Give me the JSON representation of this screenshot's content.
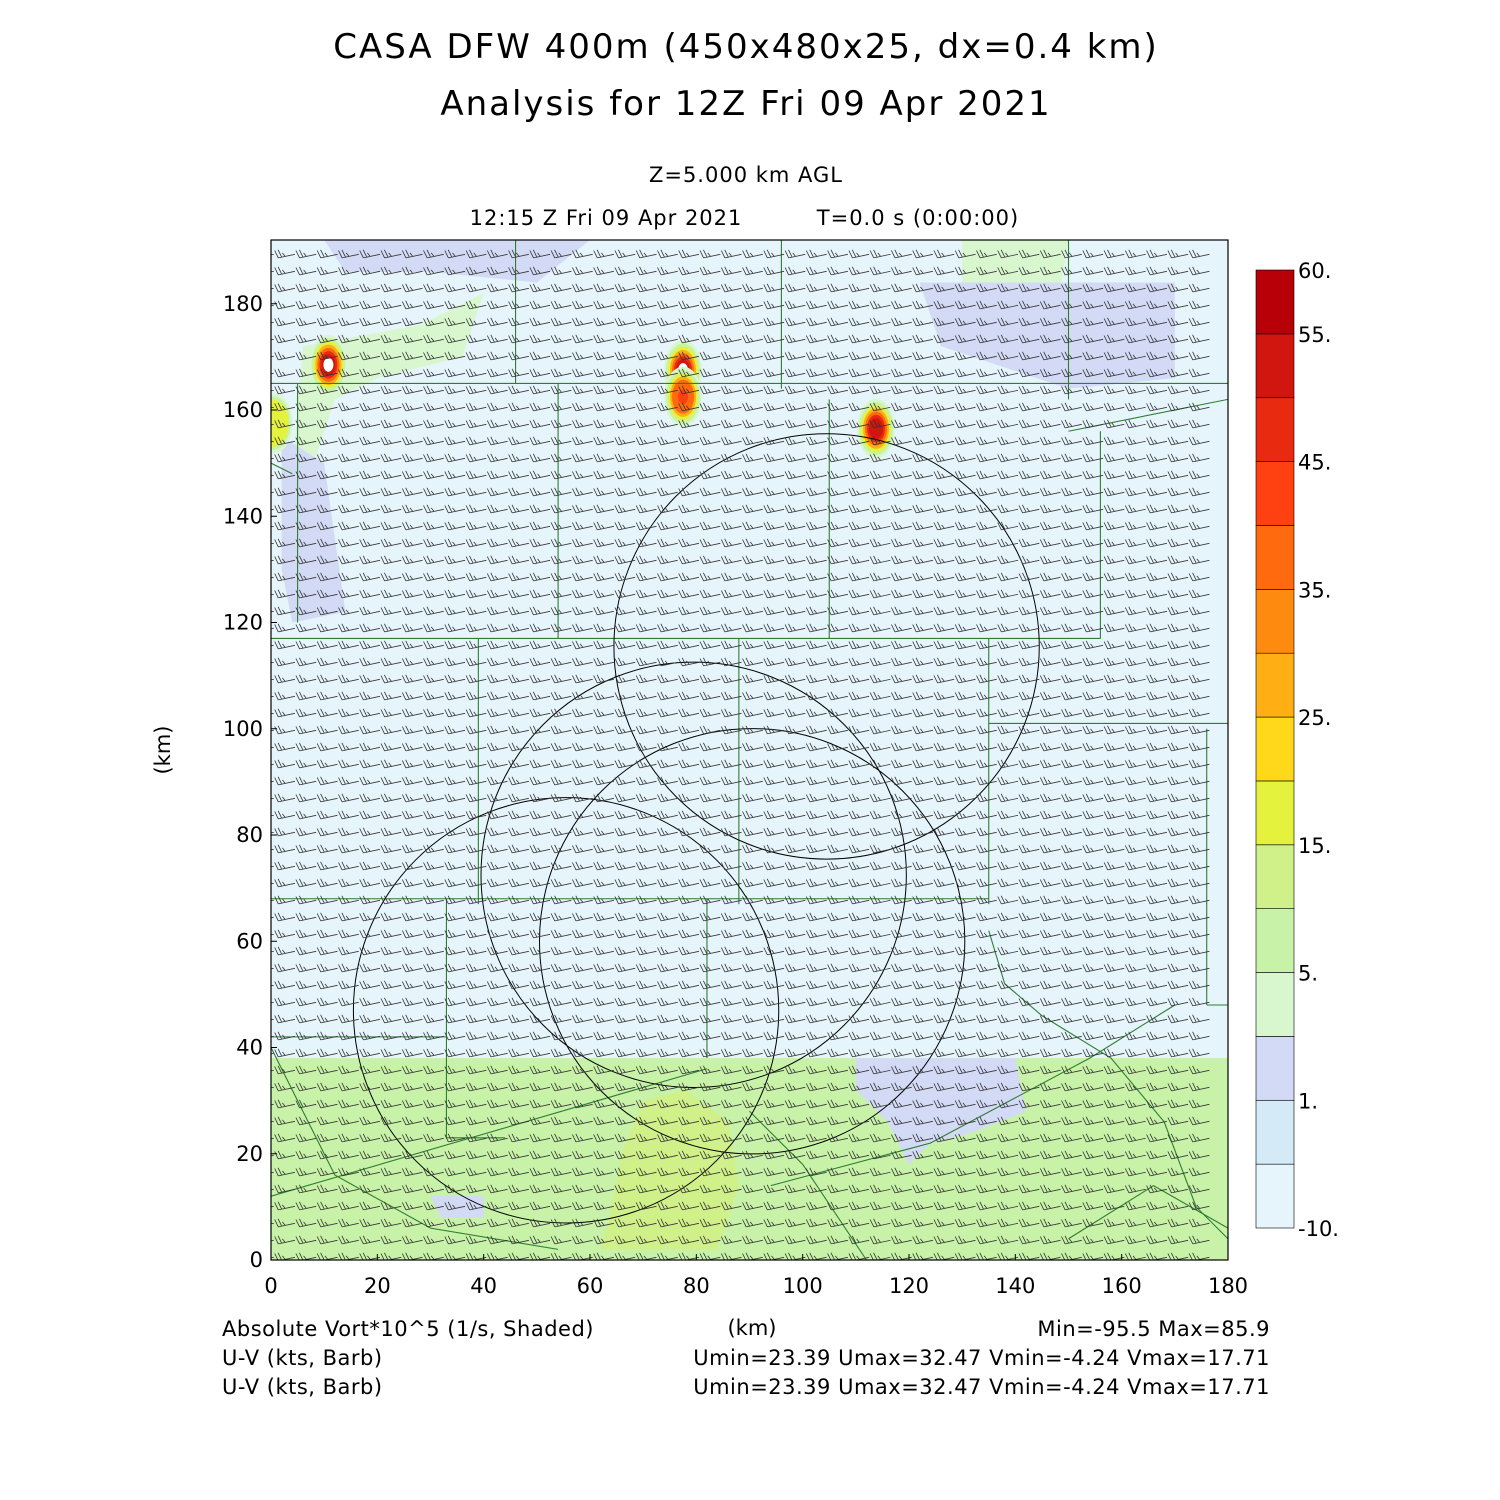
{
  "header": {
    "title_line1": "CASA DFW 400m (450x480x25, dx=0.4 km)",
    "title_line2": "Analysis for 12Z Fri 09 Apr 2021",
    "level": "Z=5.000 km AGL",
    "time": "12:15 Z Fri 09 Apr 2021",
    "elapsed": "T=0.0 s (0:00:00)"
  },
  "footer": {
    "field_label": "Absolute Vort*10^5 (1/s, Shaded)",
    "barb_label_1": "U-V (kts, Barb)",
    "barb_label_2": "U-V (kts, Barb)",
    "minmax": "Min=-95.5 Max=85.9",
    "uv_stats_1": "Umin=23.39 Umax=32.47 Vmin=-4.24 Vmax=17.71",
    "uv_stats_2": "Umin=23.39 Umax=32.47 Vmin=-4.24 Vmax=17.71"
  },
  "colors": {
    "background_field": "#e6f5fb",
    "county_lines": "#2e7d32",
    "radar_rings": "#000000"
  },
  "chart_data": {
    "type": "heatmap",
    "xlabel": "(km)",
    "ylabel": "(km)",
    "xlim": [
      0,
      180
    ],
    "ylim": [
      0,
      192
    ],
    "x_ticks": [
      0,
      20,
      40,
      60,
      80,
      100,
      120,
      140,
      160,
      180
    ],
    "y_ticks": [
      0,
      20,
      40,
      60,
      80,
      100,
      120,
      140,
      160,
      180
    ],
    "grid": false,
    "colorbar": {
      "placement": "right",
      "bins": [
        {
          "color": "#e6f5fb"
        },
        {
          "color": "#d4eaf7"
        },
        {
          "color": "#d3daf5"
        },
        {
          "color": "#d9f7cf"
        },
        {
          "color": "#c8f2a8"
        },
        {
          "color": "#d0f08a"
        },
        {
          "color": "#e4f23e"
        },
        {
          "color": "#ffd81a"
        },
        {
          "color": "#ffae14"
        },
        {
          "color": "#ff8a10"
        },
        {
          "color": "#ff6a0e"
        },
        {
          "color": "#ff4010"
        },
        {
          "color": "#e82a10"
        },
        {
          "color": "#d0160e"
        },
        {
          "color": "#b80008"
        }
      ],
      "tick_labels": [
        {
          "bin_edge": 0,
          "text": "-10."
        },
        {
          "bin_edge": 2,
          "text": "1."
        },
        {
          "bin_edge": 4,
          "text": "5."
        },
        {
          "bin_edge": 6,
          "text": "15."
        },
        {
          "bin_edge": 8,
          "text": "25."
        },
        {
          "bin_edge": 10,
          "text": "35."
        },
        {
          "bin_edge": 12,
          "text": "45."
        },
        {
          "bin_edge": 14,
          "text": "55."
        },
        {
          "bin_edge": 15,
          "text": "60."
        }
      ]
    },
    "shaded_regions": [
      {
        "name": "southern-green-band",
        "bin": 4,
        "polygon": [
          [
            0,
            0
          ],
          [
            180,
            0
          ],
          [
            180,
            38
          ],
          [
            0,
            38
          ]
        ]
      },
      {
        "name": "south-central-green-core",
        "bin": 5,
        "polygon": [
          [
            62,
            2
          ],
          [
            84,
            2
          ],
          [
            88,
            14
          ],
          [
            86,
            26
          ],
          [
            78,
            32
          ],
          [
            70,
            30
          ],
          [
            66,
            20
          ],
          [
            64,
            10
          ]
        ]
      },
      {
        "name": "southeast-blue-patch",
        "bin": 2,
        "polygon": [
          [
            110,
            38
          ],
          [
            140,
            38
          ],
          [
            142,
            28
          ],
          [
            132,
            24
          ],
          [
            124,
            22
          ],
          [
            120,
            18
          ],
          [
            116,
            26
          ],
          [
            110,
            32
          ]
        ]
      },
      {
        "name": "southwest-blue-patch",
        "bin": 2,
        "polygon": [
          [
            30,
            12
          ],
          [
            40,
            12
          ],
          [
            40,
            8
          ],
          [
            32,
            8
          ]
        ]
      },
      {
        "name": "northwest-green-patch",
        "bin": 3,
        "polygon": [
          [
            6,
            172
          ],
          [
            28,
            176
          ],
          [
            40,
            182
          ],
          [
            36,
            170
          ],
          [
            20,
            166
          ],
          [
            12,
            162
          ],
          [
            8,
            150
          ],
          [
            4,
            148
          ]
        ]
      },
      {
        "name": "northwest-blue-patch",
        "bin": 2,
        "polygon": [
          [
            2,
            155
          ],
          [
            10,
            150
          ],
          [
            12,
            136
          ],
          [
            14,
            122
          ],
          [
            4,
            120
          ],
          [
            2,
            130
          ]
        ]
      },
      {
        "name": "north-top-blue-patch",
        "bin": 2,
        "polygon": [
          [
            10,
            192
          ],
          [
            60,
            192
          ],
          [
            50,
            184
          ],
          [
            30,
            186
          ],
          [
            14,
            186
          ]
        ]
      },
      {
        "name": "northeast-green-patch",
        "bin": 3,
        "polygon": [
          [
            130,
            192
          ],
          [
            150,
            192
          ],
          [
            148,
            180
          ],
          [
            140,
            176
          ],
          [
            130,
            182
          ]
        ]
      },
      {
        "name": "northeast-blue-patch",
        "bin": 2,
        "polygon": [
          [
            122,
            184
          ],
          [
            170,
            184
          ],
          [
            170,
            166
          ],
          [
            150,
            164
          ],
          [
            126,
            172
          ]
        ]
      },
      {
        "name": "north-central-white-patch",
        "bin": 0,
        "polygon": [
          [
            76,
            172
          ],
          [
            88,
            173
          ],
          [
            90,
            168
          ],
          [
            82,
            166
          ],
          [
            76,
            168
          ]
        ]
      }
    ],
    "vortices": [
      {
        "x": 10.8,
        "y": 168.5,
        "peak": 60
      },
      {
        "x": 77.5,
        "y": 167.5,
        "peak": 60
      },
      {
        "x": 77.5,
        "y": 162.5,
        "peak": 45
      },
      {
        "x": 113.8,
        "y": 156.5,
        "peak": 55
      },
      {
        "x": 0.5,
        "y": 157.5,
        "peak": 20
      }
    ],
    "radar_rings": [
      {
        "cx": 55.5,
        "cy": 47,
        "r": 40
      },
      {
        "cx": 79.5,
        "cy": 72.5,
        "r": 40
      },
      {
        "cx": 90.5,
        "cy": 60,
        "r": 40
      },
      {
        "cx": 104.5,
        "cy": 115.5,
        "r": 40
      }
    ],
    "county_lines": [
      [
        [
          0,
          165
        ],
        [
          180,
          165
        ]
      ],
      [
        [
          46,
          192
        ],
        [
          46,
          165
        ]
      ],
      [
        [
          96,
          192
        ],
        [
          96,
          164
        ]
      ],
      [
        [
          150,
          192
        ],
        [
          150,
          162
        ]
      ],
      [
        [
          5,
          165
        ],
        [
          5,
          120
        ]
      ],
      [
        [
          54,
          165
        ],
        [
          54,
          117
        ]
      ],
      [
        [
          105,
          162
        ],
        [
          105,
          117
        ]
      ],
      [
        [
          156,
          156
        ],
        [
          156,
          117
        ]
      ],
      [
        [
          150,
          156
        ],
        [
          180,
          162
        ]
      ],
      [
        [
          0,
          117
        ],
        [
          156,
          117
        ]
      ],
      [
        [
          39,
          117
        ],
        [
          39,
          67
        ]
      ],
      [
        [
          88,
          117
        ],
        [
          88,
          67
        ]
      ],
      [
        [
          135,
          117
        ],
        [
          135,
          67
        ]
      ],
      [
        [
          135,
          101
        ],
        [
          156,
          101
        ]
      ],
      [
        [
          156,
          101
        ],
        [
          180,
          101
        ]
      ],
      [
        [
          0,
          68
        ],
        [
          135,
          68
        ]
      ],
      [
        [
          33,
          68
        ],
        [
          33,
          42
        ]
      ],
      [
        [
          0,
          42
        ],
        [
          33,
          42
        ]
      ],
      [
        [
          33,
          42
        ],
        [
          33,
          23
        ]
      ],
      [
        [
          33,
          23
        ],
        [
          44,
          23
        ]
      ],
      [
        [
          82,
          68
        ],
        [
          82,
          38
        ]
      ],
      [
        [
          0,
          12
        ],
        [
          82,
          36
        ]
      ],
      [
        [
          0,
          40
        ],
        [
          12,
          16
        ],
        [
          30,
          6
        ],
        [
          54,
          2
        ]
      ],
      [
        [
          94,
          14
        ],
        [
          124,
          22
        ],
        [
          154,
          38
        ],
        [
          170,
          48
        ]
      ],
      [
        [
          135,
          62
        ],
        [
          138,
          52
        ],
        [
          145,
          46
        ],
        [
          158,
          38
        ],
        [
          168,
          26
        ],
        [
          174,
          10
        ],
        [
          180,
          4
        ]
      ],
      [
        [
          176,
          48
        ],
        [
          176,
          100
        ]
      ],
      [
        [
          180,
          48
        ],
        [
          176,
          48
        ]
      ],
      [
        [
          0,
          150
        ],
        [
          4,
          148
        ]
      ],
      [
        [
          112,
          0
        ],
        [
          100,
          18
        ],
        [
          90,
          28
        ]
      ],
      [
        [
          150,
          4
        ],
        [
          166,
          14
        ],
        [
          180,
          6
        ]
      ]
    ],
    "wind_barbs": {
      "x_spacing_km": 4,
      "y_spacing_km": 3.2,
      "typical_u_kts": 28,
      "typical_v_kts": 6
    }
  }
}
